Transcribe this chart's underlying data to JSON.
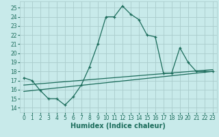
{
  "xlabel": "Humidex (Indice chaleur)",
  "bg_color": "#c8eaea",
  "grid_color": "#aacccc",
  "line_color": "#1a6b5a",
  "xlim": [
    -0.5,
    23.5
  ],
  "ylim": [
    13.5,
    25.7
  ],
  "xticks": [
    0,
    1,
    2,
    3,
    4,
    5,
    6,
    7,
    8,
    9,
    10,
    11,
    12,
    13,
    14,
    15,
    16,
    17,
    18,
    19,
    20,
    21,
    22,
    23
  ],
  "yticks": [
    14,
    15,
    16,
    17,
    18,
    19,
    20,
    21,
    22,
    23,
    24,
    25
  ],
  "line1_x": [
    0,
    1,
    2,
    3,
    4,
    5,
    6,
    7,
    8,
    9,
    10,
    11,
    12,
    13,
    14,
    15,
    16,
    17,
    18,
    19,
    20,
    21,
    22,
    23
  ],
  "line1_y": [
    17.3,
    17.0,
    15.9,
    15.0,
    15.0,
    14.3,
    15.2,
    16.5,
    18.5,
    21.0,
    24.0,
    24.0,
    25.2,
    24.3,
    23.7,
    22.0,
    21.8,
    17.8,
    17.8,
    20.6,
    19.0,
    18.0,
    18.0,
    18.0
  ],
  "line2_x": [
    0,
    23
  ],
  "line2_y": [
    15.8,
    18.0
  ],
  "line3_x": [
    0,
    23
  ],
  "line3_y": [
    16.5,
    18.2
  ],
  "font_size_labels": 7,
  "font_size_ticks": 5.5
}
